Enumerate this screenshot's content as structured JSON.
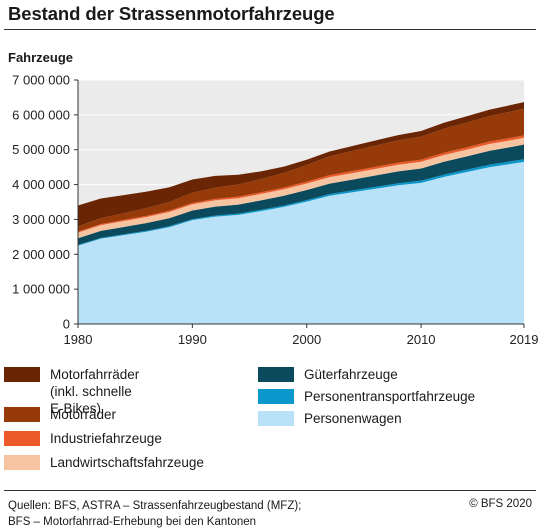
{
  "title": "Bestand der Strassenmotorfahrzeuge",
  "sources": {
    "line1": "Quellen: BFS, ASTRA – Strassenfahrzeugbestand (MFZ);",
    "line2": "BFS – Motorfahrrad-Erhebung bei den Kantonen"
  },
  "copyright": "© BFS 2020",
  "colors": {
    "plot_bg": "#ebebeb",
    "personenwagen": "#b9e1f7",
    "personentransport": "#0a98cc",
    "gueter": "#0a4a5c",
    "landwirtschaft": "#f7c4a1",
    "industrie": "#ec5a2a",
    "motorraeder": "#953a08",
    "motorfahrraeder": "#6a2505"
  },
  "chart_data": {
    "type": "area",
    "stacked": true,
    "ylabel": "Fahrzeuge",
    "ylim": [
      0,
      7000000
    ],
    "xlim": [
      1980,
      2019
    ],
    "yticks": [
      {
        "value": 0,
        "label": "0"
      },
      {
        "value": 1000000,
        "label": "1 000 000"
      },
      {
        "value": 2000000,
        "label": "2 000 000"
      },
      {
        "value": 3000000,
        "label": "3 000 000"
      },
      {
        "value": 4000000,
        "label": "4 000 000"
      },
      {
        "value": 5000000,
        "label": "5 000 000"
      },
      {
        "value": 6000000,
        "label": "6 000 000"
      },
      {
        "value": 7000000,
        "label": "7 000 000"
      }
    ],
    "xticks": [
      {
        "value": 1980,
        "label": "1980"
      },
      {
        "value": 1990,
        "label": "1990"
      },
      {
        "value": 2000,
        "label": "2000"
      },
      {
        "value": 2010,
        "label": "2010"
      },
      {
        "value": 2019,
        "label": "2019"
      }
    ],
    "x": [
      1980,
      1982,
      1984,
      1986,
      1988,
      1990,
      1992,
      1994,
      1996,
      1998,
      2000,
      2002,
      2004,
      2006,
      2008,
      2010,
      2012,
      2014,
      2016,
      2018,
      2019
    ],
    "series": [
      {
        "key": "personenwagen",
        "name": "Personenwagen",
        "values": [
          2250000,
          2450000,
          2550000,
          2650000,
          2780000,
          2980000,
          3080000,
          3130000,
          3240000,
          3360000,
          3510000,
          3680000,
          3780000,
          3880000,
          3980000,
          4050000,
          4220000,
          4360000,
          4500000,
          4600000,
          4650000
        ]
      },
      {
        "key": "personentransport",
        "name": "Personentransportfahrzeuge",
        "values": [
          20000,
          22000,
          24000,
          26000,
          28000,
          30000,
          32000,
          35000,
          38000,
          40000,
          45000,
          48000,
          52000,
          55000,
          58000,
          62000,
          65000,
          68000,
          72000,
          75000,
          78000
        ]
      },
      {
        "key": "gueter",
        "name": "Güterfahrzeuge",
        "values": [
          190000,
          200000,
          210000,
          220000,
          230000,
          245000,
          255000,
          260000,
          270000,
          280000,
          290000,
          300000,
          310000,
          325000,
          340000,
          350000,
          370000,
          380000,
          400000,
          410000,
          420000
        ]
      },
      {
        "key": "landwirtschaft",
        "name": "Landwirtschaftsfahrzeuge",
        "values": [
          160000,
          165000,
          170000,
          175000,
          178000,
          180000,
          182000,
          183000,
          184000,
          185000,
          186000,
          187000,
          188000,
          189000,
          190000,
          191000,
          192000,
          193000,
          194000,
          195000,
          195000
        ]
      },
      {
        "key": "industrie",
        "name": "Industriefahrzeuge",
        "values": [
          30000,
          32000,
          34000,
          36000,
          38000,
          40000,
          42000,
          45000,
          47000,
          50000,
          52000,
          55000,
          58000,
          60000,
          62000,
          64000,
          66000,
          68000,
          70000,
          72000,
          73000
        ]
      },
      {
        "key": "motorraeder",
        "name": "Motorräder",
        "values": [
          150000,
          170000,
          190000,
          220000,
          250000,
          290000,
          320000,
          350000,
          380000,
          420000,
          480000,
          540000,
          580000,
          610000,
          640000,
          660000,
          690000,
          710000,
          730000,
          750000,
          760000
        ]
      },
      {
        "key": "motorfahrraeder",
        "name": "Motorfahrräder (inkl. schnelle E-Bikes)",
        "legend_lines": [
          "Motorfahrräder",
          "(inkl. schnelle E-Bikes)"
        ],
        "values": [
          600000,
          560000,
          520000,
          470000,
          420000,
          380000,
          340000,
          280000,
          220000,
          180000,
          150000,
          140000,
          140000,
          145000,
          150000,
          160000,
          170000,
          180000,
          185000,
          190000,
          190000
        ]
      }
    ]
  }
}
